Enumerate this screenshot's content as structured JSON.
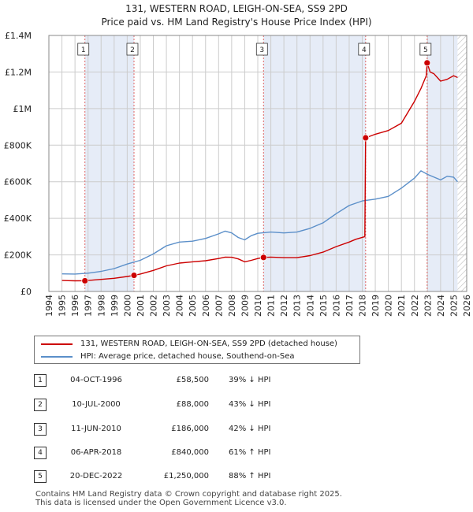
{
  "title": {
    "line1": "131, WESTERN ROAD, LEIGH-ON-SEA, SS9 2PD",
    "line2": "Price paid vs. HM Land Registry's House Price Index (HPI)"
  },
  "colors": {
    "property": "#cc0000",
    "hpi": "#5b8fc9",
    "shade": "#e6ecf7",
    "grid": "#cccccc",
    "marker_line": "#e06666"
  },
  "chart_data": {
    "type": "line",
    "title": "131, WESTERN ROAD, LEIGH-ON-SEA, SS9 2PD — Price paid vs. HM Land Registry's House Price Index (HPI)",
    "xlabel": "",
    "ylabel": "",
    "xlim": [
      1994,
      2026
    ],
    "ylim": [
      0,
      1400000
    ],
    "x_ticks": [
      1994,
      1995,
      1996,
      1997,
      1998,
      1999,
      2000,
      2001,
      2002,
      2003,
      2004,
      2005,
      2006,
      2007,
      2008,
      2009,
      2010,
      2011,
      2012,
      2013,
      2014,
      2015,
      2016,
      2017,
      2018,
      2019,
      2020,
      2021,
      2022,
      2023,
      2024,
      2025,
      2026
    ],
    "y_ticks": [
      {
        "value": 0,
        "label": "£0"
      },
      {
        "value": 200000,
        "label": "£200K"
      },
      {
        "value": 400000,
        "label": "£400K"
      },
      {
        "value": 600000,
        "label": "£600K"
      },
      {
        "value": 800000,
        "label": "£800K"
      },
      {
        "value": 1000000,
        "label": "£1M"
      },
      {
        "value": 1200000,
        "label": "£1.2M"
      },
      {
        "value": 1400000,
        "label": "£1.4M"
      }
    ],
    "grid": true,
    "shaded_spans": [
      [
        1996.76,
        2000.52
      ],
      [
        2010.44,
        2018.26
      ],
      [
        2022.97,
        2025.3
      ]
    ],
    "hatched_after": 2025.3,
    "series": [
      {
        "name": "131, WESTERN ROAD, LEIGH-ON-SEA, SS9 2PD (detached house)",
        "color": "#cc0000",
        "points": [
          [
            1995.0,
            60000
          ],
          [
            1995.5,
            59000
          ],
          [
            1996.0,
            58000
          ],
          [
            1996.76,
            58500
          ],
          [
            1997.0,
            60000
          ],
          [
            1998.0,
            66000
          ],
          [
            1999.0,
            72000
          ],
          [
            2000.0,
            82000
          ],
          [
            2000.52,
            88000
          ],
          [
            2001.0,
            95000
          ],
          [
            2002.0,
            115000
          ],
          [
            2003.0,
            140000
          ],
          [
            2004.0,
            155000
          ],
          [
            2005.0,
            162000
          ],
          [
            2006.0,
            168000
          ],
          [
            2007.0,
            180000
          ],
          [
            2007.5,
            188000
          ],
          [
            2008.0,
            187000
          ],
          [
            2008.5,
            178000
          ],
          [
            2009.0,
            162000
          ],
          [
            2009.5,
            170000
          ],
          [
            2010.0,
            180000
          ],
          [
            2010.44,
            186000
          ],
          [
            2011.0,
            188000
          ],
          [
            2012.0,
            185000
          ],
          [
            2013.0,
            185000
          ],
          [
            2014.0,
            196000
          ],
          [
            2015.0,
            215000
          ],
          [
            2016.0,
            245000
          ],
          [
            2017.0,
            270000
          ],
          [
            2017.5,
            285000
          ],
          [
            2018.2,
            300000
          ],
          [
            2018.26,
            840000
          ],
          [
            2019.0,
            860000
          ],
          [
            2020.0,
            880000
          ],
          [
            2021.0,
            920000
          ],
          [
            2021.5,
            980000
          ],
          [
            2022.0,
            1040000
          ],
          [
            2022.5,
            1110000
          ],
          [
            2022.9,
            1180000
          ],
          [
            2022.97,
            1250000
          ],
          [
            2023.2,
            1200000
          ],
          [
            2023.5,
            1190000
          ],
          [
            2024.0,
            1150000
          ],
          [
            2024.5,
            1160000
          ],
          [
            2025.0,
            1180000
          ],
          [
            2025.3,
            1170000
          ]
        ]
      },
      {
        "name": "HPI: Average price, detached house, Southend-on-Sea",
        "color": "#5b8fc9",
        "points": [
          [
            1995.0,
            96000
          ],
          [
            1996.0,
            95000
          ],
          [
            1997.0,
            100000
          ],
          [
            1998.0,
            110000
          ],
          [
            1999.0,
            125000
          ],
          [
            2000.0,
            150000
          ],
          [
            2001.0,
            170000
          ],
          [
            2002.0,
            205000
          ],
          [
            2003.0,
            250000
          ],
          [
            2004.0,
            270000
          ],
          [
            2005.0,
            275000
          ],
          [
            2006.0,
            290000
          ],
          [
            2007.0,
            315000
          ],
          [
            2007.5,
            330000
          ],
          [
            2008.0,
            320000
          ],
          [
            2008.5,
            295000
          ],
          [
            2009.0,
            282000
          ],
          [
            2009.5,
            305000
          ],
          [
            2010.0,
            318000
          ],
          [
            2011.0,
            325000
          ],
          [
            2012.0,
            320000
          ],
          [
            2013.0,
            325000
          ],
          [
            2014.0,
            345000
          ],
          [
            2015.0,
            375000
          ],
          [
            2016.0,
            425000
          ],
          [
            2017.0,
            470000
          ],
          [
            2018.0,
            495000
          ],
          [
            2019.0,
            505000
          ],
          [
            2020.0,
            520000
          ],
          [
            2021.0,
            565000
          ],
          [
            2022.0,
            620000
          ],
          [
            2022.5,
            660000
          ],
          [
            2023.0,
            640000
          ],
          [
            2023.5,
            625000
          ],
          [
            2024.0,
            610000
          ],
          [
            2024.5,
            630000
          ],
          [
            2025.0,
            625000
          ],
          [
            2025.3,
            600000
          ]
        ]
      }
    ],
    "sales": [
      {
        "id": "1",
        "x": 1996.76,
        "price": 58500
      },
      {
        "id": "2",
        "x": 2000.52,
        "price": 88000
      },
      {
        "id": "3",
        "x": 2010.44,
        "price": 186000
      },
      {
        "id": "4",
        "x": 2018.26,
        "price": 840000
      },
      {
        "id": "5",
        "x": 2022.97,
        "price": 1250000
      }
    ]
  },
  "legend": {
    "property_label": "131, WESTERN ROAD, LEIGH-ON-SEA, SS9 2PD (detached house)",
    "hpi_label": "HPI: Average price, detached house, Southend-on-Sea"
  },
  "sales_table": [
    {
      "num": "1",
      "date": "04-OCT-1996",
      "price": "£58,500",
      "hpi": "39% ↓ HPI"
    },
    {
      "num": "2",
      "date": "10-JUL-2000",
      "price": "£88,000",
      "hpi": "43% ↓ HPI"
    },
    {
      "num": "3",
      "date": "11-JUN-2010",
      "price": "£186,000",
      "hpi": "42% ↓ HPI"
    },
    {
      "num": "4",
      "date": "06-APR-2018",
      "price": "£840,000",
      "hpi": "61% ↑ HPI"
    },
    {
      "num": "5",
      "date": "20-DEC-2022",
      "price": "£1,250,000",
      "hpi": "88% ↑ HPI"
    }
  ],
  "footer": {
    "line1": "Contains HM Land Registry data © Crown copyright and database right 2025.",
    "line2": "This data is licensed under the Open Government Licence v3.0."
  }
}
